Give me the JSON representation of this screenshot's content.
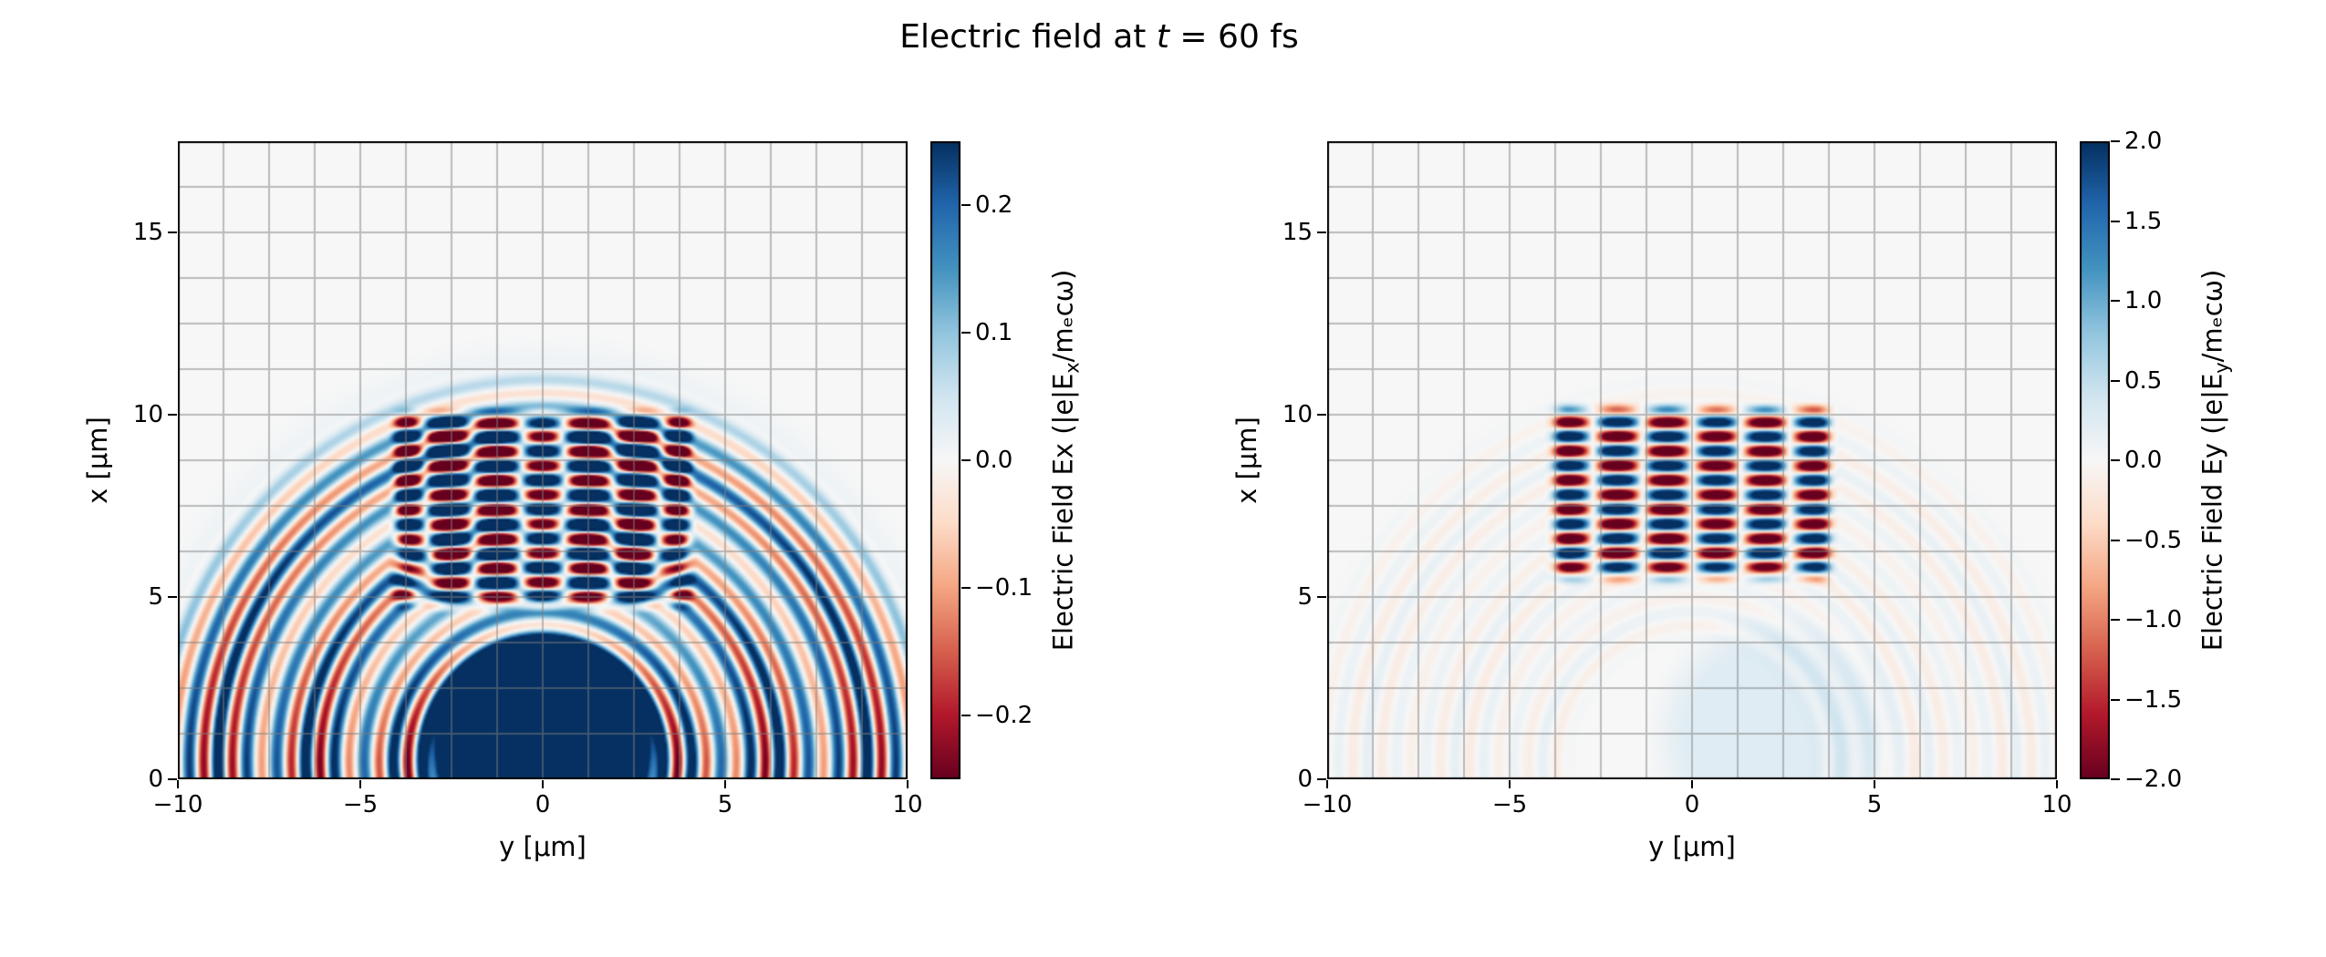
{
  "figure": {
    "title": {
      "prefix": "Electric field at ",
      "symbol": "t",
      "suffix": " = 60 fs",
      "text": "Electric field at t = 60 fs"
    }
  },
  "colormap": {
    "name": "RdBu",
    "stops": [
      "#67001f",
      "#b2182b",
      "#d6604d",
      "#f4a582",
      "#fddbc7",
      "#f7f7f7",
      "#d1e5f0",
      "#92c5de",
      "#4393c0",
      "#2166ac",
      "#053061"
    ]
  },
  "grid": {
    "spacing": 1.25,
    "color": "#7d7d7d",
    "opacity": 0.5
  },
  "chart_data": [
    {
      "type": "heatmap",
      "field": "Ex",
      "xlabel": "y [μm]",
      "ylabel": "x [μm]",
      "xlim": [
        -10,
        10
      ],
      "ylim": [
        0,
        17.5
      ],
      "xticks": {
        "values": [
          -10,
          -5,
          0,
          5,
          10
        ],
        "labels": [
          "−10",
          "−5",
          "0",
          "5",
          "10"
        ]
      },
      "yticks": {
        "values": [
          0,
          5,
          10,
          15
        ],
        "labels": [
          "0",
          "5",
          "10",
          "15"
        ]
      },
      "grid": true,
      "colorbar": {
        "label": "Electric Field Ex (|e|Eₓ/mₑcω)",
        "label_parts": {
          "pre": "Electric Field Ex (|e|E",
          "sub": "x",
          "post": "/mₑcω)"
        },
        "clim": [
          -0.25,
          0.25
        ],
        "ticks": {
          "values": [
            0.2,
            0.1,
            0.0,
            -0.1,
            -0.2
          ],
          "labels": [
            "0.2",
            "0.1",
            "0.0",
            "−0.1",
            "−0.2"
          ]
        }
      },
      "description": "Concentric circular wavefronts centered near (y=0, x=0) out to radius ~11 μm, a saturated blue core of radius ~3 μm, and a striped laser-pulse region for x between 4.5 and 10.3 μm, |y| < 4.3 μm.",
      "features": [
        {
          "kind": "disk",
          "cu": 0,
          "cv": 0.5,
          "radius": 10.5,
          "soft": 3.0,
          "value": 0.045
        },
        {
          "kind": "radial_waves",
          "cu": 0,
          "cv": 0.5,
          "wavelength": 0.8,
          "amplitude": 0.3,
          "r_min": 2.6,
          "r_max": 11.0,
          "edge": 0.9,
          "phase": 0.8,
          "group_wavelength": 2.6,
          "group_depth": 0.5,
          "elev_falloff": 0.55
        },
        {
          "kind": "disk",
          "cu": 0,
          "cv": 0.9,
          "radius": 3.1,
          "soft": 0.9,
          "value": 0.34
        },
        {
          "kind": "checker_stripes",
          "u0": -4.3,
          "u1": 4.3,
          "v0": 4.5,
          "v1": 10.3,
          "edge": 0.7,
          "wavelength": 0.8,
          "u_mod_wavelength": 2.6,
          "amplitude": 0.55
        }
      ]
    },
    {
      "type": "heatmap",
      "field": "Ey",
      "xlabel": "y [μm]",
      "ylabel": "x [μm]",
      "xlim": [
        -10,
        10
      ],
      "ylim": [
        0,
        17.5
      ],
      "xticks": {
        "values": [
          -10,
          -5,
          0,
          5,
          10
        ],
        "labels": [
          "−10",
          "−5",
          "0",
          "5",
          "10"
        ]
      },
      "yticks": {
        "values": [
          0,
          5,
          10,
          15
        ],
        "labels": [
          "0",
          "5",
          "10",
          "15"
        ]
      },
      "grid": true,
      "colorbar": {
        "label": "Electric Field Ey (|e|Ey/mₑcω)",
        "label_parts": {
          "pre": "Electric Field Ey (|e|E",
          "sub": "y",
          "post": "/mₑcω)"
        },
        "clim": [
          -2.0,
          2.0
        ],
        "ticks": {
          "values": [
            2.0,
            1.5,
            1.0,
            0.5,
            0.0,
            -0.5,
            -1.0,
            -1.5,
            -2.0
          ],
          "labels": [
            "2.0",
            "1.5",
            "1.0",
            "0.5",
            "0.0",
            "−0.5",
            "−1.0",
            "−1.5",
            "−2.0"
          ]
        }
      },
      "description": "Strongly saturated striped laser pulse for x between 5.2 and 10.5 μm, |y| < 4.2 μm with a node at y=0, plus very faint circular wavefronts out to radius ~11 μm and a weak blue tint near (y≈2, x≈1).",
      "features": [
        {
          "kind": "radial_waves",
          "cu": 0,
          "cv": 0.5,
          "wavelength": 0.8,
          "amplitude": 0.18,
          "r_min": 3.0,
          "r_max": 11.0,
          "edge": 1.0,
          "phase": 0.8,
          "group_wavelength": 2.6,
          "group_depth": 0.4,
          "elev_falloff": 0.3
        },
        {
          "kind": "disk",
          "cu": 2.3,
          "cv": 1.2,
          "radius": 3.0,
          "soft": 1.5,
          "value": 0.25
        },
        {
          "kind": "mode_stripes",
          "u0": -4.2,
          "u1": 4.2,
          "v0": 5.2,
          "v1": 10.5,
          "edge": 0.8,
          "wavelength": 0.8,
          "u_mod_wavelength": 2.7,
          "amplitude": 3.2
        }
      ]
    }
  ]
}
